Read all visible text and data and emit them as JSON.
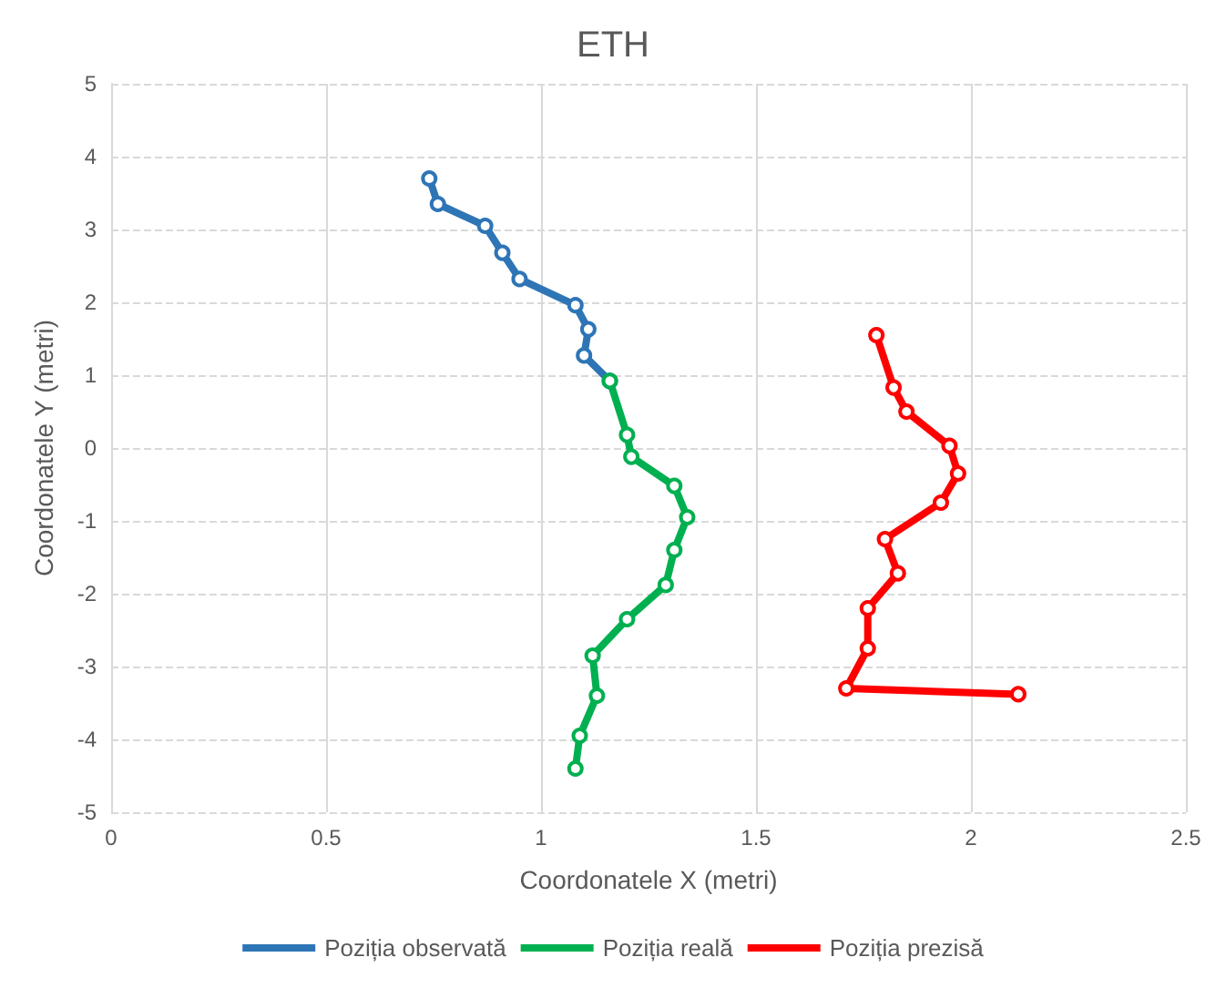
{
  "chart_data": {
    "type": "line",
    "title": "ETH",
    "xlabel": "Coordonatele X (metri)",
    "ylabel": "Coordonatele Y (metri)",
    "xlim": [
      0,
      2.5
    ],
    "xticks": [
      0,
      0.5,
      1,
      1.5,
      2,
      2.5
    ],
    "ylim": [
      -5,
      5
    ],
    "yticks": [
      -5,
      -4,
      -3,
      -2,
      -1,
      0,
      1,
      2,
      3,
      4,
      5
    ],
    "grid": true,
    "legend": "bottom",
    "marker": "circle",
    "line_style": "solid",
    "series": [
      {
        "name": "Poziția observată",
        "color": "#2e75b6",
        "x": [
          0.74,
          0.76,
          0.87,
          0.91,
          0.95,
          1.08,
          1.11,
          1.1,
          1.16
        ],
        "values": [
          3.7,
          3.35,
          3.05,
          2.68,
          2.32,
          1.96,
          1.63,
          1.27,
          0.92
        ]
      },
      {
        "name": "Poziția reală",
        "color": "#00b050",
        "x": [
          1.16,
          1.2,
          1.21,
          1.31,
          1.34,
          1.31,
          1.29,
          1.2,
          1.12,
          1.13,
          1.09,
          1.08
        ],
        "values": [
          0.92,
          0.18,
          -0.12,
          -0.52,
          -0.95,
          -1.4,
          -1.88,
          -2.35,
          -2.85,
          -3.4,
          -3.95,
          -4.4
        ]
      },
      {
        "name": "Poziția prezisă",
        "color": "#ff0000",
        "x": [
          1.78,
          1.82,
          1.85,
          1.95,
          1.97,
          1.93,
          1.8,
          1.83,
          1.76,
          1.76,
          1.71,
          2.11
        ],
        "values": [
          1.55,
          0.83,
          0.5,
          0.03,
          -0.35,
          -0.75,
          -1.25,
          -1.72,
          -2.2,
          -2.75,
          -3.3,
          -3.38
        ]
      }
    ]
  }
}
